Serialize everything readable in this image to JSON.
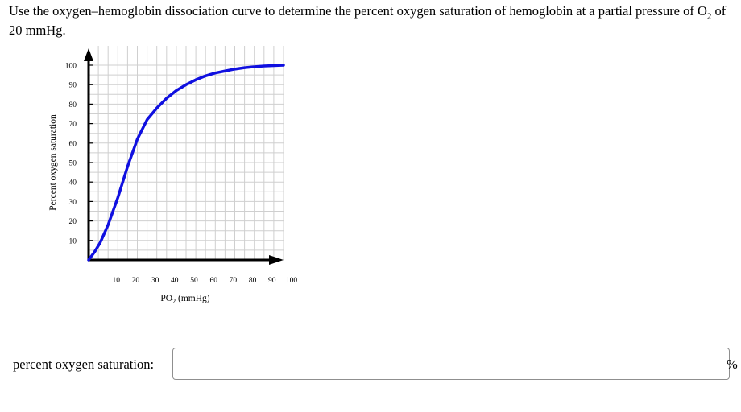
{
  "question": {
    "text_before": "Use the oxygen–hemoglobin dissociation curve to determine the percent oxygen saturation of hemoglobin at a partial pressure of O",
    "subscript": "2",
    "text_after": " of 20 mmHg."
  },
  "chart_data": {
    "type": "line",
    "ylabel": "Percent oxygen saturation",
    "xlabel_main": "PO",
    "xlabel_sub": "2",
    "xlabel_unit": " (mmHg)",
    "xlim": [
      0,
      100
    ],
    "ylim": [
      0,
      100
    ],
    "x_ticks": [
      10,
      20,
      30,
      40,
      50,
      60,
      70,
      80,
      90,
      100
    ],
    "y_ticks": [
      10,
      20,
      30,
      40,
      50,
      60,
      70,
      80,
      90,
      100
    ],
    "grid": true,
    "series": [
      {
        "color": "#1010e0",
        "x": [
          0,
          3,
          6,
          10,
          15,
          20,
          25,
          30,
          35,
          40,
          45,
          50,
          55,
          60,
          65,
          70,
          75,
          80,
          85,
          90,
          95,
          100
        ],
        "y": [
          0,
          4,
          9,
          18,
          32,
          48,
          62,
          72,
          78,
          83,
          87,
          90,
          92.5,
          94.5,
          96,
          97,
          98,
          98.7,
          99.2,
          99.6,
          99.8,
          100
        ]
      }
    ]
  },
  "answer": {
    "label": "percent oxygen saturation:",
    "value": "",
    "unit": "%"
  }
}
